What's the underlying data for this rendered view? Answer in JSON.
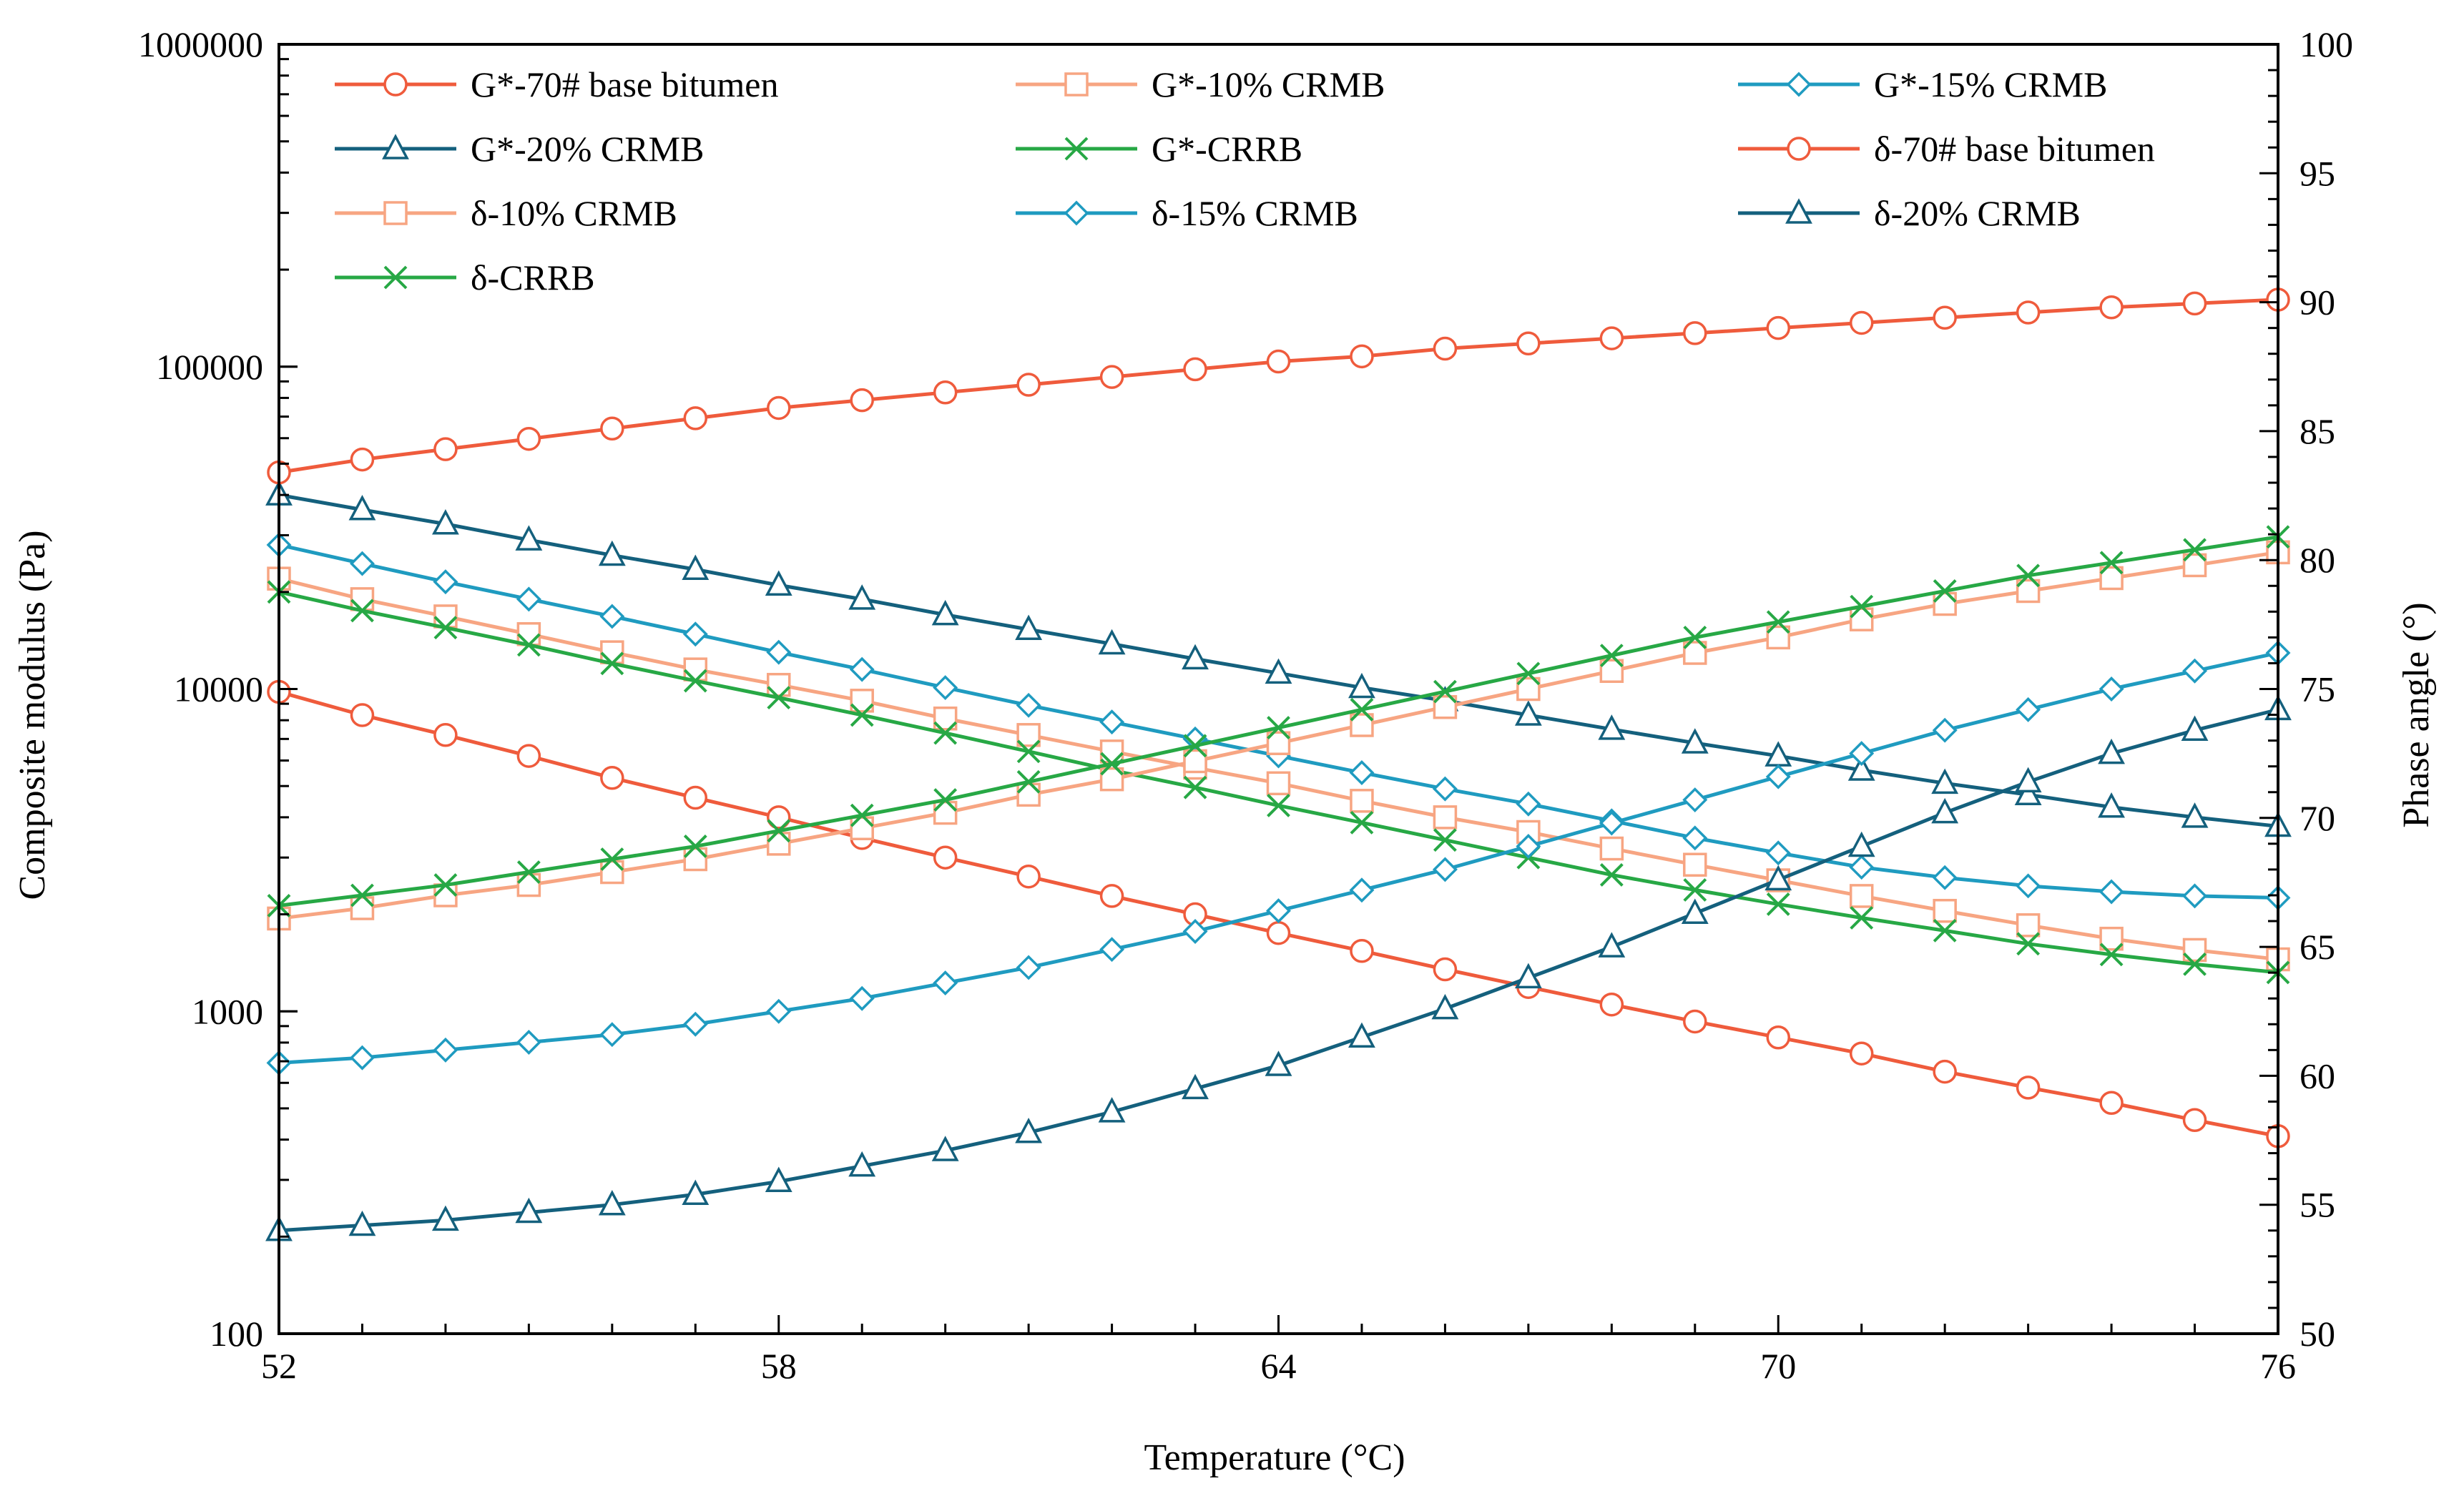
{
  "chart_data": {
    "type": "line",
    "title": "",
    "xlabel": "Temperature (°C)",
    "ylabel": "Composite modulus (Pa)",
    "y2label": "Phase angle (°)",
    "xlim": [
      52,
      76
    ],
    "ylim": [
      100,
      1000000
    ],
    "y2lim": [
      50,
      100
    ],
    "yscale": "log",
    "grid": false,
    "legend_position": "top",
    "x_ticks": [
      52,
      58,
      64,
      70,
      76
    ],
    "y_ticks": [
      100,
      1000,
      10000,
      100000,
      1000000
    ],
    "y_tick_labels": [
      "100",
      "1000",
      "10000",
      "100000",
      "1000000"
    ],
    "y2_ticks": [
      50,
      55,
      60,
      65,
      70,
      75,
      80,
      85,
      90,
      95,
      100
    ],
    "series": [
      {
        "name": "G*-70# base bitumen",
        "axis": "left",
        "marker": "circle",
        "color": "#ef5b3c",
        "x": [
          52,
          53,
          54,
          55,
          56,
          57,
          58,
          59,
          60,
          61,
          62,
          63,
          64,
          65,
          66,
          67,
          68,
          69,
          70,
          71,
          72,
          73,
          74,
          75,
          76
        ],
        "values": [
          9800,
          8300,
          7200,
          6200,
          5300,
          4600,
          4000,
          3450,
          3000,
          2620,
          2280,
          2000,
          1750,
          1540,
          1350,
          1190,
          1050,
          930,
          830,
          740,
          650,
          580,
          520,
          460,
          410
        ]
      },
      {
        "name": "G*-10% CRMB",
        "axis": "left",
        "marker": "square",
        "color": "#f7a582",
        "x": [
          52,
          53,
          54,
          55,
          56,
          57,
          58,
          59,
          60,
          61,
          62,
          63,
          64,
          65,
          66,
          67,
          68,
          69,
          70,
          71,
          72,
          73,
          74,
          75,
          76
        ],
        "values": [
          22000,
          19000,
          16800,
          14800,
          13000,
          11500,
          10300,
          9200,
          8100,
          7200,
          6400,
          5700,
          5100,
          4500,
          4000,
          3600,
          3200,
          2850,
          2550,
          2280,
          2050,
          1850,
          1680,
          1550,
          1450
        ]
      },
      {
        "name": "G*-15% CRMB",
        "axis": "left",
        "marker": "diamond",
        "color": "#1f9bc0",
        "x": [
          52,
          53,
          54,
          55,
          56,
          57,
          58,
          59,
          60,
          61,
          62,
          63,
          64,
          65,
          66,
          67,
          68,
          69,
          70,
          71,
          72,
          73,
          74,
          75,
          76
        ],
        "values": [
          28000,
          24500,
          21500,
          19000,
          16800,
          14800,
          13000,
          11500,
          10100,
          8900,
          7900,
          7000,
          6200,
          5500,
          4900,
          4400,
          3900,
          3450,
          3100,
          2800,
          2600,
          2450,
          2350,
          2280,
          2250
        ]
      },
      {
        "name": "G*-20% CRMB",
        "axis": "left",
        "marker": "triangle",
        "color": "#14607d",
        "x": [
          52,
          53,
          54,
          55,
          56,
          57,
          58,
          59,
          60,
          61,
          62,
          63,
          64,
          65,
          66,
          67,
          68,
          69,
          70,
          71,
          72,
          73,
          74,
          75,
          76
        ],
        "values": [
          40000,
          36000,
          32500,
          29000,
          26000,
          23500,
          21000,
          19000,
          17000,
          15300,
          13800,
          12400,
          11200,
          10100,
          9200,
          8300,
          7500,
          6800,
          6200,
          5600,
          5100,
          4700,
          4300,
          4000,
          3750
        ]
      },
      {
        "name": "G*-CRRB",
        "axis": "left",
        "marker": "x",
        "color": "#27a845",
        "x": [
          52,
          53,
          54,
          55,
          56,
          57,
          58,
          59,
          60,
          61,
          62,
          63,
          64,
          65,
          66,
          67,
          68,
          69,
          70,
          71,
          72,
          73,
          74,
          75,
          76
        ],
        "values": [
          20000,
          17500,
          15500,
          13700,
          12000,
          10600,
          9400,
          8300,
          7300,
          6400,
          5600,
          4950,
          4350,
          3850,
          3400,
          3000,
          2650,
          2380,
          2150,
          1950,
          1780,
          1620,
          1500,
          1400,
          1320
        ]
      },
      {
        "name": "δ-70# base bitumen",
        "axis": "right",
        "marker": "circle",
        "color": "#ef5b3c",
        "x": [
          52,
          53,
          54,
          55,
          56,
          57,
          58,
          59,
          60,
          61,
          62,
          63,
          64,
          65,
          66,
          67,
          68,
          69,
          70,
          71,
          72,
          73,
          74,
          75,
          76
        ],
        "values": [
          83.4,
          83.9,
          84.3,
          84.7,
          85.1,
          85.5,
          85.9,
          86.2,
          86.5,
          86.8,
          87.1,
          87.4,
          87.7,
          87.9,
          88.2,
          88.4,
          88.6,
          88.8,
          89.0,
          89.2,
          89.4,
          89.6,
          89.8,
          89.95,
          90.1
        ]
      },
      {
        "name": "δ-10% CRMB",
        "axis": "right",
        "marker": "square",
        "color": "#f7a582",
        "x": [
          52,
          53,
          54,
          55,
          56,
          57,
          58,
          59,
          60,
          61,
          62,
          63,
          64,
          65,
          66,
          67,
          68,
          69,
          70,
          71,
          72,
          73,
          74,
          75,
          76
        ],
        "values": [
          66.1,
          66.5,
          67.0,
          67.4,
          67.9,
          68.4,
          69.0,
          69.6,
          70.2,
          70.9,
          71.5,
          72.2,
          72.9,
          73.6,
          74.3,
          75.0,
          75.7,
          76.4,
          77.0,
          77.7,
          78.3,
          78.8,
          79.3,
          79.8,
          80.3
        ]
      },
      {
        "name": "δ-15% CRMB",
        "axis": "right",
        "marker": "diamond",
        "color": "#1f9bc0",
        "x": [
          52,
          53,
          54,
          55,
          56,
          57,
          58,
          59,
          60,
          61,
          62,
          63,
          64,
          65,
          66,
          67,
          68,
          69,
          70,
          71,
          72,
          73,
          74,
          75,
          76
        ],
        "values": [
          60.5,
          60.7,
          61.0,
          61.3,
          61.6,
          62.0,
          62.5,
          63.0,
          63.6,
          64.2,
          64.9,
          65.6,
          66.4,
          67.2,
          68.0,
          68.9,
          69.8,
          70.7,
          71.6,
          72.5,
          73.4,
          74.2,
          75.0,
          75.7,
          76.4
        ]
      },
      {
        "name": "δ-20% CRMB",
        "axis": "right",
        "marker": "triangle",
        "color": "#14607d",
        "x": [
          52,
          53,
          54,
          55,
          56,
          57,
          58,
          59,
          60,
          61,
          62,
          63,
          64,
          65,
          66,
          67,
          68,
          69,
          70,
          71,
          72,
          73,
          74,
          75,
          76
        ],
        "values": [
          54.0,
          54.2,
          54.4,
          54.7,
          55.0,
          55.4,
          55.9,
          56.5,
          57.1,
          57.8,
          58.6,
          59.5,
          60.4,
          61.5,
          62.6,
          63.8,
          65.0,
          66.3,
          67.6,
          68.9,
          70.2,
          71.4,
          72.5,
          73.4,
          74.2
        ]
      },
      {
        "name": "δ-CRRB",
        "axis": "right",
        "marker": "x",
        "color": "#27a845",
        "x": [
          52,
          53,
          54,
          55,
          56,
          57,
          58,
          59,
          60,
          61,
          62,
          63,
          64,
          65,
          66,
          67,
          68,
          69,
          70,
          71,
          72,
          73,
          74,
          75,
          76
        ],
        "values": [
          66.6,
          67.0,
          67.4,
          67.9,
          68.4,
          68.9,
          69.5,
          70.1,
          70.7,
          71.4,
          72.1,
          72.8,
          73.5,
          74.2,
          74.9,
          75.6,
          76.3,
          77.0,
          77.6,
          78.2,
          78.8,
          79.4,
          79.9,
          80.4,
          80.9
        ]
      }
    ]
  }
}
